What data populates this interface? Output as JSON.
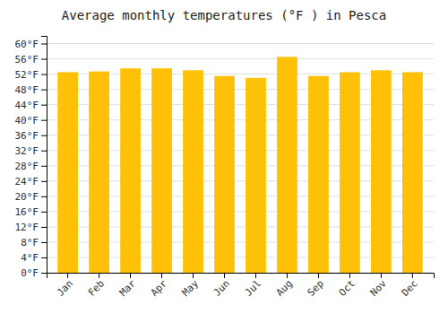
{
  "chart_data": {
    "type": "bar",
    "title": "Average monthly temperatures (°F ) in Pesca",
    "categories": [
      "Jan",
      "Feb",
      "Mar",
      "Apr",
      "May",
      "Jun",
      "Jul",
      "Aug",
      "Sep",
      "Oct",
      "Nov",
      "Dec"
    ],
    "values": [
      52.5,
      52.7,
      53.5,
      53.5,
      53.0,
      51.5,
      51.0,
      56.5,
      51.5,
      52.5,
      53.0,
      52.5
    ],
    "color": "#FFC107",
    "ylim": [
      0,
      62
    ],
    "yticks": [
      {
        "value": 0,
        "label": "0°F"
      },
      {
        "value": 4,
        "label": "4°F"
      },
      {
        "value": 8,
        "label": "8°F"
      },
      {
        "value": 12,
        "label": "12°F"
      },
      {
        "value": 16,
        "label": "16°F"
      },
      {
        "value": 20,
        "label": "20°F"
      },
      {
        "value": 24,
        "label": "24°F"
      },
      {
        "value": 28,
        "label": "28°F"
      },
      {
        "value": 32,
        "label": "32°F"
      },
      {
        "value": 36,
        "label": "36°F"
      },
      {
        "value": 40,
        "label": "40°F"
      },
      {
        "value": 44,
        "label": "44°F"
      },
      {
        "value": 48,
        "label": "48°F"
      },
      {
        "value": 52,
        "label": "52°F"
      },
      {
        "value": 56,
        "label": "56°F"
      },
      {
        "value": 60,
        "label": "60°F"
      }
    ],
    "grid": true
  }
}
